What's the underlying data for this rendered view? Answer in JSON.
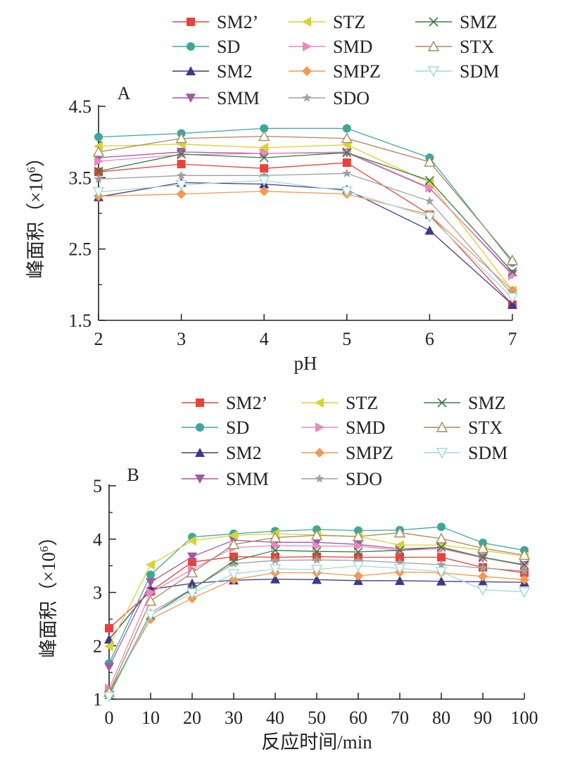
{
  "chart_data": [
    {
      "type": "line",
      "panel_label": "A",
      "xlabel": "pH",
      "ylabel": "峰面积（×10⁶）",
      "ylabel_parts": {
        "main": "峰面积（",
        "times": "×10",
        "exp": "6",
        "close": "）"
      },
      "x": [
        2,
        3,
        4,
        5,
        6,
        7
      ],
      "xticks": [
        "2",
        "3",
        "4",
        "5",
        "6",
        "7"
      ],
      "xlim": [
        2,
        7
      ],
      "ylim": [
        1.5,
        4.5
      ],
      "yticks": [
        "1.5",
        "2.5",
        "3.5",
        "4.5"
      ],
      "ytick_values": [
        1.5,
        2.5,
        3.5,
        4.5
      ],
      "legend_position": "top",
      "series": [
        {
          "name": "SM2’",
          "color": "#e8423c",
          "marker": "square",
          "values": [
            3.58,
            3.69,
            3.63,
            3.71,
            2.98,
            1.72
          ]
        },
        {
          "name": "SD",
          "color": "#3ca89c",
          "marker": "circle",
          "values": [
            4.07,
            4.12,
            4.19,
            4.19,
            3.78,
            2.31
          ]
        },
        {
          "name": "SM2",
          "color": "#3f3a86",
          "marker": "triangle-up",
          "values": [
            3.23,
            3.43,
            3.41,
            3.33,
            2.76,
            1.72
          ]
        },
        {
          "name": "SMM",
          "color": "#a25aa4",
          "marker": "triangle-down",
          "values": [
            3.78,
            3.86,
            3.84,
            3.85,
            3.35,
            2.15
          ]
        },
        {
          "name": "STZ",
          "color": "#d8d335",
          "marker": "triangle-left",
          "values": [
            3.94,
            3.97,
            3.92,
            3.96,
            3.43,
            1.92
          ]
        },
        {
          "name": "SMD",
          "color": "#e889c0",
          "marker": "triangle-right",
          "values": [
            3.73,
            3.82,
            3.84,
            3.86,
            3.36,
            2.13
          ]
        },
        {
          "name": "SMPZ",
          "color": "#f09a52",
          "marker": "diamond",
          "values": [
            3.24,
            3.27,
            3.31,
            3.27,
            2.98,
            1.92
          ]
        },
        {
          "name": "SDO",
          "color": "#a0a0a0",
          "marker": "star",
          "values": [
            3.48,
            3.53,
            3.53,
            3.56,
            3.17,
            1.86
          ]
        },
        {
          "name": "SMZ",
          "color": "#3c7a43",
          "marker": "x",
          "values": [
            3.59,
            3.83,
            3.78,
            3.85,
            3.46,
            2.18
          ]
        },
        {
          "name": "STX",
          "color": "#a8895c",
          "marker": "triangle-up-open",
          "values": [
            3.86,
            4.05,
            4.08,
            4.05,
            3.72,
            2.34
          ]
        },
        {
          "name": "SDM",
          "color": "#a4d8d8",
          "marker": "triangle-down-open",
          "values": [
            3.3,
            3.4,
            3.46,
            3.31,
            2.95,
            1.82
          ]
        }
      ]
    },
    {
      "type": "line",
      "panel_label": "B",
      "xlabel": "反应时间/min",
      "ylabel": "峰面积（×10⁶）",
      "ylabel_parts": {
        "main": "峰面积（",
        "times": "×10",
        "exp": "6",
        "close": "）"
      },
      "x": [
        0,
        10,
        20,
        30,
        40,
        50,
        60,
        70,
        80,
        90,
        100
      ],
      "xticks": [
        "0",
        "10",
        "20",
        "30",
        "40",
        "50",
        "60",
        "70",
        "80",
        "90",
        "100"
      ],
      "xlim": [
        0,
        100
      ],
      "ylim": [
        1,
        5
      ],
      "yticks": [
        "1",
        "2",
        "3",
        "4",
        "5"
      ],
      "ytick_values": [
        1,
        2,
        3,
        4,
        5
      ],
      "legend_position": "top",
      "series": [
        {
          "name": "SM2’",
          "color": "#e8423c",
          "marker": "square",
          "values": [
            2.33,
            3.02,
            3.57,
            3.67,
            3.66,
            3.67,
            3.66,
            3.66,
            3.66,
            3.47,
            3.37
          ]
        },
        {
          "name": "SD",
          "color": "#3ca89c",
          "marker": "circle",
          "values": [
            1.67,
            3.33,
            4.04,
            4.1,
            4.15,
            4.18,
            4.16,
            4.17,
            4.23,
            3.93,
            3.79
          ]
        },
        {
          "name": "SM2",
          "color": "#3f3a86",
          "marker": "triangle-up",
          "values": [
            2.12,
            3.06,
            3.17,
            3.23,
            3.25,
            3.24,
            3.22,
            3.22,
            3.21,
            3.2,
            3.19
          ]
        },
        {
          "name": "SMM",
          "color": "#a25aa4",
          "marker": "triangle-down",
          "values": [
            1.6,
            3.19,
            3.67,
            3.98,
            3.94,
            3.94,
            3.9,
            3.82,
            3.84,
            3.65,
            3.51
          ]
        },
        {
          "name": "STZ",
          "color": "#d8d335",
          "marker": "triangle-left",
          "values": [
            1.99,
            3.52,
            3.97,
            4.07,
            4.1,
            4.08,
            4.05,
            3.89,
            3.89,
            3.79,
            3.68
          ]
        },
        {
          "name": "SMD",
          "color": "#e889c0",
          "marker": "triangle-right",
          "values": [
            1.2,
            3.0,
            3.43,
            3.84,
            3.88,
            3.87,
            3.87,
            3.79,
            3.82,
            3.65,
            3.52
          ]
        },
        {
          "name": "SMPZ",
          "color": "#f09a52",
          "marker": "diamond",
          "values": [
            1.14,
            2.5,
            2.89,
            3.24,
            3.37,
            3.37,
            3.31,
            3.38,
            3.37,
            3.3,
            3.24
          ]
        },
        {
          "name": "SDO",
          "color": "#a0a0a0",
          "marker": "star",
          "values": [
            1.08,
            2.62,
            3.07,
            3.54,
            3.6,
            3.61,
            3.6,
            3.56,
            3.52,
            3.46,
            3.4
          ]
        },
        {
          "name": "SMZ",
          "color": "#3c7a43",
          "marker": "x",
          "values": [
            1.08,
            2.57,
            3.06,
            3.59,
            3.79,
            3.77,
            3.76,
            3.79,
            3.85,
            3.66,
            3.52
          ]
        },
        {
          "name": "STX",
          "color": "#a8895c",
          "marker": "triangle-up-open",
          "values": [
            1.13,
            2.84,
            3.37,
            3.9,
            4.03,
            4.07,
            4.05,
            4.12,
            4.01,
            3.83,
            3.7
          ]
        },
        {
          "name": "SDM",
          "color": "#a4d8d8",
          "marker": "triangle-down-open",
          "values": [
            1.05,
            2.58,
            2.99,
            3.35,
            3.44,
            3.43,
            3.5,
            3.45,
            3.39,
            3.05,
            3.01
          ]
        }
      ]
    }
  ]
}
